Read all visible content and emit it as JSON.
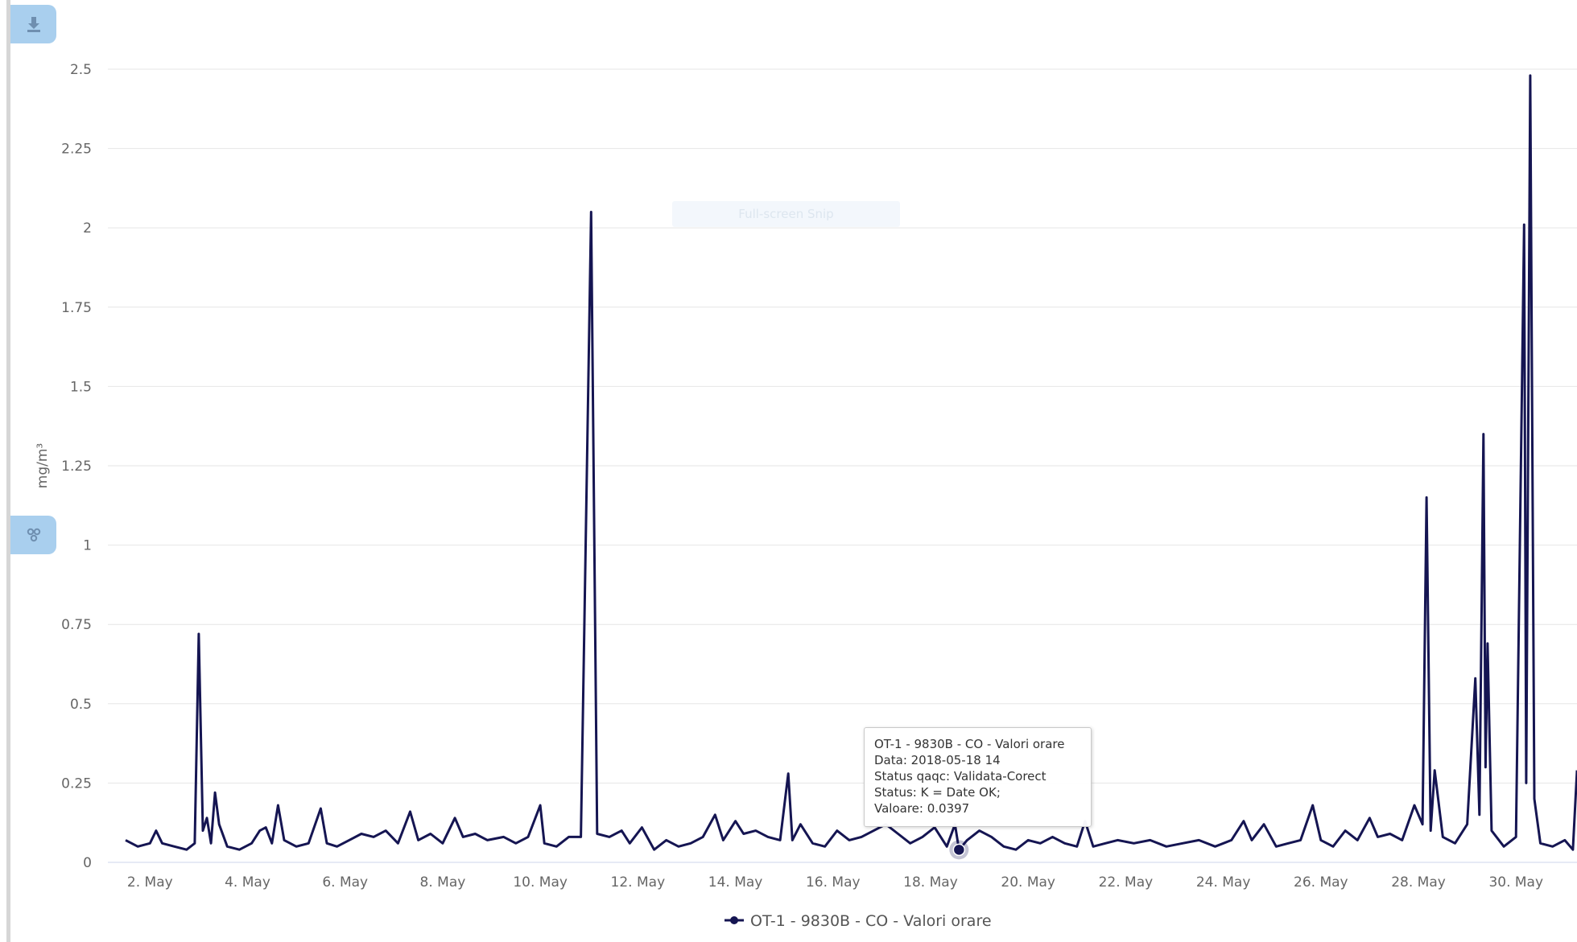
{
  "toolbar": {
    "top_button_icon": "download-icon",
    "mid_button_icon": "options-icon"
  },
  "overlay_text": "Full-screen Snip",
  "chart_data": {
    "type": "line",
    "title": "",
    "xlabel": "",
    "ylabel": "mg/m³",
    "ylim": [
      0,
      2.5
    ],
    "xlim": [
      "2018-05-01 12",
      "2018-05-31 06"
    ],
    "y_ticks": [
      0,
      0.25,
      0.5,
      0.75,
      1,
      1.25,
      1.5,
      1.75,
      2,
      2.25,
      2.5
    ],
    "y_tick_labels": [
      "0",
      "0.25",
      "0.5",
      "0.75",
      "1",
      "1.25",
      "1.5",
      "1.75",
      "2",
      "2.25",
      "2.5"
    ],
    "x_ticks": [
      "2018-05-02",
      "2018-05-04",
      "2018-05-06",
      "2018-05-08",
      "2018-05-10",
      "2018-05-12",
      "2018-05-14",
      "2018-05-16",
      "2018-05-18",
      "2018-05-20",
      "2018-05-22",
      "2018-05-24",
      "2018-05-26",
      "2018-05-28",
      "2018-05-30"
    ],
    "x_tick_labels": [
      "2. May",
      "4. May",
      "6. May",
      "8. May",
      "10. May",
      "12. May",
      "14. May",
      "16. May",
      "18. May",
      "20. May",
      "22. May",
      "24. May",
      "26. May",
      "28. May",
      "30. May"
    ],
    "grid": true,
    "legend": "bottom-center",
    "series": [
      {
        "name": "OT-1 - 9830B - CO - Valori orare",
        "color": "#151552",
        "x_hours_note": "",
        "points": [
          [
            "2018-05-01 12",
            0.07
          ],
          [
            "2018-05-01 18",
            0.05
          ],
          [
            "2018-05-02 00",
            0.06
          ],
          [
            "2018-05-02 03",
            0.1
          ],
          [
            "2018-05-02 06",
            0.06
          ],
          [
            "2018-05-02 12",
            0.05
          ],
          [
            "2018-05-02 18",
            0.04
          ],
          [
            "2018-05-02 22",
            0.06
          ],
          [
            "2018-05-03 00",
            0.72
          ],
          [
            "2018-05-03 02",
            0.1
          ],
          [
            "2018-05-03 04",
            0.14
          ],
          [
            "2018-05-03 06",
            0.06
          ],
          [
            "2018-05-03 08",
            0.22
          ],
          [
            "2018-05-03 10",
            0.12
          ],
          [
            "2018-05-03 14",
            0.05
          ],
          [
            "2018-05-03 20",
            0.04
          ],
          [
            "2018-05-04 02",
            0.06
          ],
          [
            "2018-05-04 06",
            0.1
          ],
          [
            "2018-05-04 09",
            0.11
          ],
          [
            "2018-05-04 12",
            0.06
          ],
          [
            "2018-05-04 15",
            0.18
          ],
          [
            "2018-05-04 18",
            0.07
          ],
          [
            "2018-05-05 00",
            0.05
          ],
          [
            "2018-05-05 06",
            0.06
          ],
          [
            "2018-05-05 12",
            0.17
          ],
          [
            "2018-05-05 15",
            0.06
          ],
          [
            "2018-05-05 20",
            0.05
          ],
          [
            "2018-05-06 02",
            0.07
          ],
          [
            "2018-05-06 08",
            0.09
          ],
          [
            "2018-05-06 14",
            0.08
          ],
          [
            "2018-05-06 20",
            0.1
          ],
          [
            "2018-05-07 02",
            0.06
          ],
          [
            "2018-05-07 08",
            0.16
          ],
          [
            "2018-05-07 12",
            0.07
          ],
          [
            "2018-05-07 18",
            0.09
          ],
          [
            "2018-05-08 00",
            0.06
          ],
          [
            "2018-05-08 06",
            0.14
          ],
          [
            "2018-05-08 10",
            0.08
          ],
          [
            "2018-05-08 16",
            0.09
          ],
          [
            "2018-05-08 22",
            0.07
          ],
          [
            "2018-05-09 06",
            0.08
          ],
          [
            "2018-05-09 12",
            0.06
          ],
          [
            "2018-05-09 18",
            0.08
          ],
          [
            "2018-05-10 00",
            0.18
          ],
          [
            "2018-05-10 02",
            0.06
          ],
          [
            "2018-05-10 08",
            0.05
          ],
          [
            "2018-05-10 14",
            0.08
          ],
          [
            "2018-05-10 20",
            0.08
          ],
          [
            "2018-05-11 01",
            2.05
          ],
          [
            "2018-05-11 04",
            0.09
          ],
          [
            "2018-05-11 10",
            0.08
          ],
          [
            "2018-05-11 16",
            0.1
          ],
          [
            "2018-05-11 20",
            0.06
          ],
          [
            "2018-05-12 02",
            0.11
          ],
          [
            "2018-05-12 08",
            0.04
          ],
          [
            "2018-05-12 14",
            0.07
          ],
          [
            "2018-05-12 20",
            0.05
          ],
          [
            "2018-05-13 02",
            0.06
          ],
          [
            "2018-05-13 08",
            0.08
          ],
          [
            "2018-05-13 14",
            0.15
          ],
          [
            "2018-05-13 18",
            0.07
          ],
          [
            "2018-05-14 00",
            0.13
          ],
          [
            "2018-05-14 04",
            0.09
          ],
          [
            "2018-05-14 10",
            0.1
          ],
          [
            "2018-05-14 16",
            0.08
          ],
          [
            "2018-05-14 22",
            0.07
          ],
          [
            "2018-05-15 02",
            0.28
          ],
          [
            "2018-05-15 04",
            0.07
          ],
          [
            "2018-05-15 08",
            0.12
          ],
          [
            "2018-05-15 14",
            0.06
          ],
          [
            "2018-05-15 20",
            0.05
          ],
          [
            "2018-05-16 02",
            0.1
          ],
          [
            "2018-05-16 08",
            0.07
          ],
          [
            "2018-05-16 14",
            0.08
          ],
          [
            "2018-05-16 20",
            0.1
          ],
          [
            "2018-05-17 02",
            0.12
          ],
          [
            "2018-05-17 08",
            0.09
          ],
          [
            "2018-05-17 14",
            0.06
          ],
          [
            "2018-05-17 20",
            0.08
          ],
          [
            "2018-05-18 02",
            0.11
          ],
          [
            "2018-05-18 08",
            0.05
          ],
          [
            "2018-05-18 12",
            0.12
          ],
          [
            "2018-05-18 14",
            0.0397
          ],
          [
            "2018-05-18 18",
            0.07
          ],
          [
            "2018-05-19 00",
            0.1
          ],
          [
            "2018-05-19 06",
            0.08
          ],
          [
            "2018-05-19 12",
            0.05
          ],
          [
            "2018-05-19 18",
            0.04
          ],
          [
            "2018-05-20 00",
            0.07
          ],
          [
            "2018-05-20 06",
            0.06
          ],
          [
            "2018-05-20 12",
            0.08
          ],
          [
            "2018-05-20 18",
            0.06
          ],
          [
            "2018-05-21 00",
            0.05
          ],
          [
            "2018-05-21 04",
            0.13
          ],
          [
            "2018-05-21 08",
            0.05
          ],
          [
            "2018-05-21 14",
            0.06
          ],
          [
            "2018-05-21 20",
            0.07
          ],
          [
            "2018-05-22 04",
            0.06
          ],
          [
            "2018-05-22 12",
            0.07
          ],
          [
            "2018-05-22 20",
            0.05
          ],
          [
            "2018-05-23 04",
            0.06
          ],
          [
            "2018-05-23 12",
            0.07
          ],
          [
            "2018-05-23 20",
            0.05
          ],
          [
            "2018-05-24 04",
            0.07
          ],
          [
            "2018-05-24 10",
            0.13
          ],
          [
            "2018-05-24 14",
            0.07
          ],
          [
            "2018-05-24 20",
            0.12
          ],
          [
            "2018-05-25 02",
            0.05
          ],
          [
            "2018-05-25 08",
            0.06
          ],
          [
            "2018-05-25 14",
            0.07
          ],
          [
            "2018-05-25 20",
            0.18
          ],
          [
            "2018-05-26 00",
            0.07
          ],
          [
            "2018-05-26 06",
            0.05
          ],
          [
            "2018-05-26 12",
            0.1
          ],
          [
            "2018-05-26 18",
            0.07
          ],
          [
            "2018-05-27 00",
            0.14
          ],
          [
            "2018-05-27 04",
            0.08
          ],
          [
            "2018-05-27 10",
            0.09
          ],
          [
            "2018-05-27 16",
            0.07
          ],
          [
            "2018-05-27 22",
            0.18
          ],
          [
            "2018-05-28 02",
            0.12
          ],
          [
            "2018-05-28 04",
            1.15
          ],
          [
            "2018-05-28 06",
            0.1
          ],
          [
            "2018-05-28 08",
            0.29
          ],
          [
            "2018-05-28 12",
            0.08
          ],
          [
            "2018-05-28 18",
            0.06
          ],
          [
            "2018-05-29 00",
            0.12
          ],
          [
            "2018-05-29 04",
            0.58
          ],
          [
            "2018-05-29 06",
            0.15
          ],
          [
            "2018-05-29 08",
            1.35
          ],
          [
            "2018-05-29 09",
            0.3
          ],
          [
            "2018-05-29 10",
            0.69
          ],
          [
            "2018-05-29 12",
            0.1
          ],
          [
            "2018-05-29 18",
            0.05
          ],
          [
            "2018-05-30 00",
            0.08
          ],
          [
            "2018-05-30 04",
            2.01
          ],
          [
            "2018-05-30 05",
            0.25
          ],
          [
            "2018-05-30 07",
            2.48
          ],
          [
            "2018-05-30 09",
            0.2
          ],
          [
            "2018-05-30 12",
            0.06
          ],
          [
            "2018-05-30 18",
            0.05
          ],
          [
            "2018-05-31 00",
            0.07
          ],
          [
            "2018-05-31 04",
            0.04
          ],
          [
            "2018-05-31 06",
            0.29
          ]
        ]
      }
    ],
    "tooltip": {
      "title": "OT-1 - 9830B - CO - Valori orare",
      "lines": [
        "Data: 2018-05-18 14",
        "Status qaqc: Validata-Corect",
        "Status: K = Date OK;",
        "Valoare: 0.0397"
      ],
      "point": [
        "2018-05-18 14",
        0.0397
      ]
    }
  }
}
